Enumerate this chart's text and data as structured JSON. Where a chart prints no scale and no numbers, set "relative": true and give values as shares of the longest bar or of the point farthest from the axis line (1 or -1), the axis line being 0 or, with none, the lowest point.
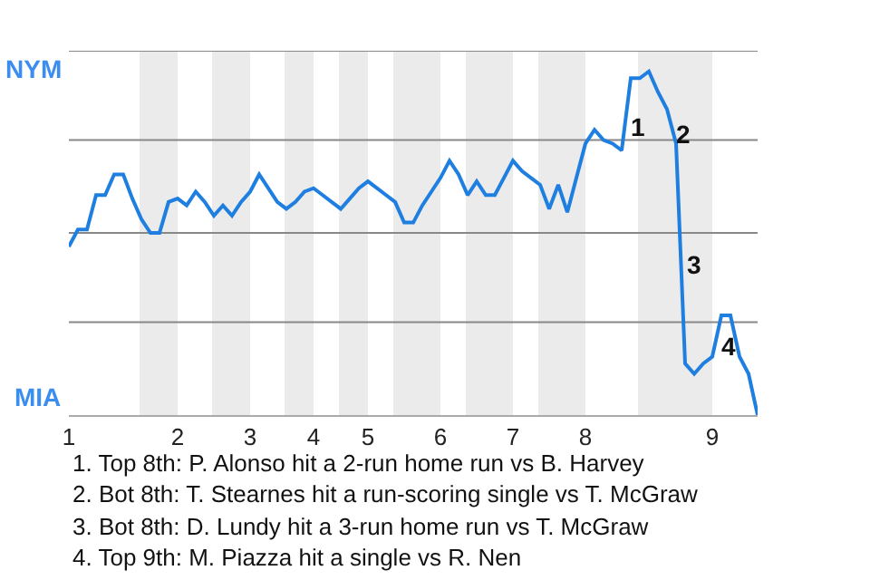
{
  "chart_data": {
    "type": "line",
    "relative": true,
    "categories": [
      "1",
      null,
      null,
      null,
      null,
      null,
      null,
      null,
      null,
      null,
      null,
      null,
      "2",
      null,
      null,
      null,
      null,
      null,
      null,
      null,
      "3",
      null,
      null,
      null,
      null,
      null,
      null,
      "4",
      null,
      null,
      null,
      null,
      null,
      "5",
      null,
      null,
      null,
      null,
      null,
      null,
      null,
      "6",
      null,
      null,
      null,
      null,
      null,
      null,
      null,
      "7",
      null,
      null,
      null,
      null,
      null,
      null,
      null,
      "8",
      null,
      null,
      null,
      null,
      null,
      null,
      null,
      null,
      null,
      null,
      null,
      null,
      null,
      "9",
      null,
      null,
      null,
      null,
      null
    ],
    "series": [
      {
        "color": "#1f7fe0",
        "values": [
          0.49,
          0.54,
          0.54,
          0.64,
          0.64,
          0.7,
          0.7,
          0.63,
          0.57,
          0.53,
          0.53,
          0.62,
          0.63,
          0.61,
          0.65,
          0.62,
          0.58,
          0.61,
          0.58,
          0.62,
          0.65,
          0.7,
          0.66,
          0.62,
          0.6,
          0.62,
          0.65,
          0.66,
          0.64,
          0.62,
          0.6,
          0.63,
          0.66,
          0.68,
          0.66,
          0.64,
          0.62,
          0.56,
          0.56,
          0.61,
          0.65,
          0.69,
          0.74,
          0.7,
          0.64,
          0.68,
          0.64,
          0.64,
          0.69,
          0.74,
          0.71,
          0.69,
          0.67,
          0.6,
          0.67,
          0.59,
          0.69,
          0.79,
          0.83,
          0.8,
          0.79,
          0.77,
          0.98,
          0.98,
          1,
          0.94,
          0.89,
          0.79,
          0.15,
          0.12,
          0.15,
          0.17,
          0.29,
          0.29,
          0.17,
          0.12,
          0
        ]
      }
    ],
    "marker": "none",
    "line_style": "solid",
    "ref_lines": [
      {
        "axis": "y",
        "value": 0.27,
        "color": "#888888"
      },
      {
        "axis": "y",
        "value": 0.53,
        "color": "#888888"
      },
      {
        "axis": "y",
        "value": 0.8,
        "color": "#888888"
      },
      {
        "axis": "y",
        "value": 1.06,
        "color": "#888888"
      }
    ],
    "annotations": [
      "1",
      "2",
      "3",
      "4",
      "NYM",
      "MIA",
      "1. Top 8th: P. Alonso hit a 2-run home run vs B. Harvey",
      "2. Bot 8th: T. Stearnes hit a run-scoring single vs T. McGraw",
      "3. Bot 8th: D. Lundy hit a 3-run home run vs T. McGraw",
      "4. Top 9th: M. Piazza hit a single vs R. Nen"
    ]
  }
}
